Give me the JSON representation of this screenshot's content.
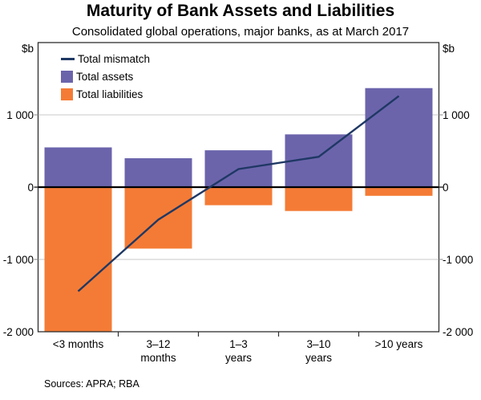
{
  "title": "Maturity of Bank Assets and Liabilities",
  "subtitle": "Consolidated global operations, major banks, as at March 2017",
  "axis": {
    "unit_left": "$b",
    "unit_right": "$b",
    "ylim": [
      -2000,
      2000
    ],
    "y_ticks": [
      {
        "value": 1000,
        "label": "1 000"
      },
      {
        "value": 0,
        "label": "0"
      },
      {
        "value": -1000,
        "label": "-1 000"
      },
      {
        "value": -2000,
        "label": "-2 000"
      }
    ]
  },
  "legend": [
    {
      "label": "Total mismatch",
      "swatch": "line",
      "color": "#1F3864"
    },
    {
      "label": "Total assets",
      "swatch": "box",
      "color": "#6B64AB"
    },
    {
      "label": "Total liabilities",
      "swatch": "box",
      "color": "#F47B35"
    }
  ],
  "chart_data": {
    "type": "bar",
    "title": "Maturity of Bank Assets and Liabilities",
    "subtitle": "Consolidated global operations, major banks, as at March 2017",
    "unit": "$b",
    "categories": [
      "<3 months",
      "3–12 months",
      "1–3 years",
      "3–10 years",
      ">10 years"
    ],
    "x_tick_lines": [
      [
        "<3 months"
      ],
      [
        "3–12",
        "months"
      ],
      [
        "1–3",
        "years"
      ],
      [
        "3–10",
        "years"
      ],
      [
        ">10 years"
      ]
    ],
    "ylim": [
      -2000,
      2000
    ],
    "grid": "horizontal",
    "legend_position": "top-left",
    "series": [
      {
        "name": "Total assets",
        "type": "bar",
        "color": "#6B64AB",
        "values": [
          550,
          400,
          510,
          730,
          1370
        ]
      },
      {
        "name": "Total liabilities",
        "type": "bar",
        "color": "#F47B35",
        "values": [
          -2000,
          -850,
          -250,
          -330,
          -120
        ]
      },
      {
        "name": "Total mismatch",
        "type": "line",
        "color": "#1F3864",
        "values": [
          -1440,
          -450,
          250,
          420,
          1260
        ]
      }
    ],
    "colors": {
      "assets": "#6B64AB",
      "liabilities": "#F47B35",
      "mismatch": "#1F3864",
      "gridline": "#C9C9C9",
      "frame": "#2F2F2F",
      "zero_line": "#000000"
    }
  },
  "footer": {
    "sources": "Sources: APRA; RBA"
  }
}
